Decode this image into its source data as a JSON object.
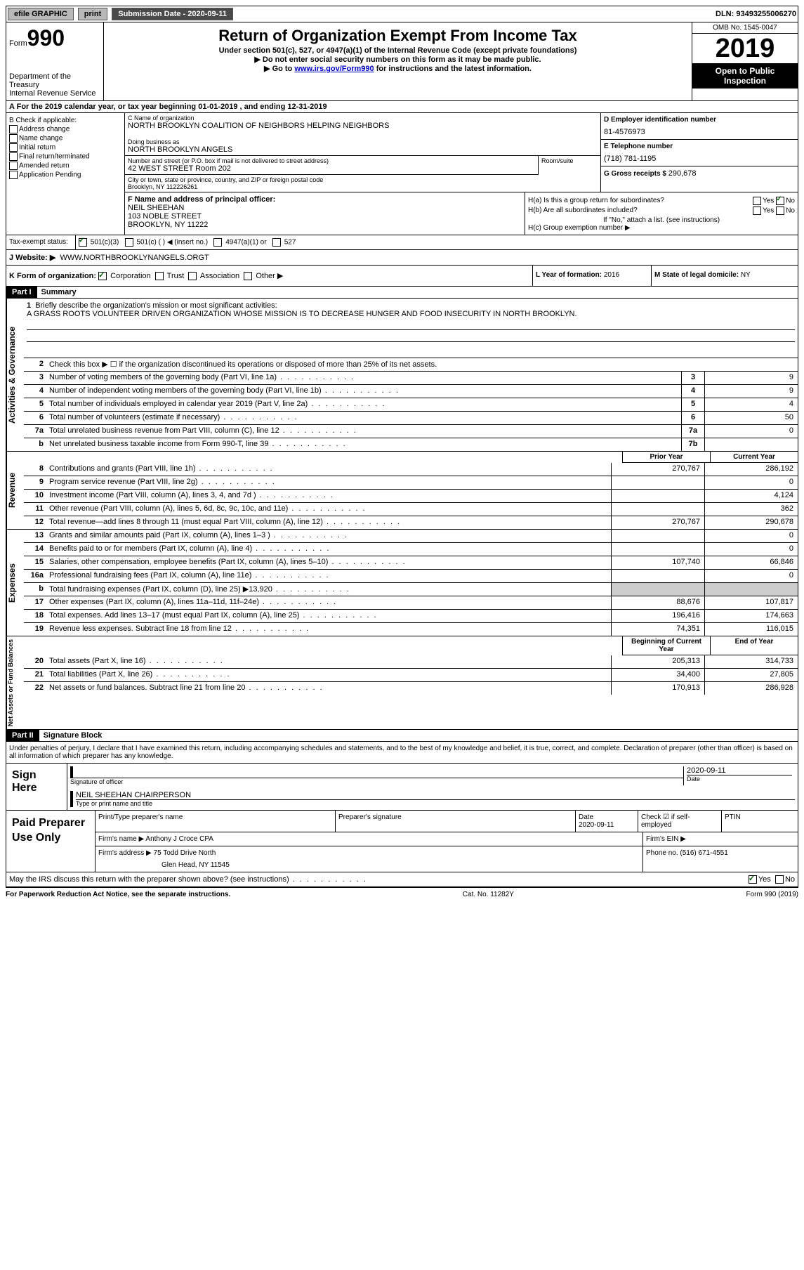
{
  "topbar": {
    "efile": "efile GRAPHIC",
    "print": "print",
    "subdate_label": "Submission Date - ",
    "subdate": "2020-09-11",
    "dln_label": "DLN: ",
    "dln": "93493255006270"
  },
  "header": {
    "form_label": "Form",
    "form_num": "990",
    "dept1": "Department of the Treasury",
    "dept2": "Internal Revenue Service",
    "title": "Return of Organization Exempt From Income Tax",
    "sub1": "Under section 501(c), 527, or 4947(a)(1) of the Internal Revenue Code (except private foundations)",
    "sub2": "▶ Do not enter social security numbers on this form as it may be made public.",
    "sub3a": "▶ Go to ",
    "sub3_link": "www.irs.gov/Form990",
    "sub3b": " for instructions and the latest information.",
    "omb": "OMB No. 1545-0047",
    "year": "2019",
    "open": "Open to Public Inspection"
  },
  "period": {
    "text1": "For the 2019 calendar year, or tax year beginning ",
    "begin": "01-01-2019",
    "text2": " , and ending ",
    "end": "12-31-2019"
  },
  "colB": {
    "label": "B Check if applicable:",
    "addr_change": "Address change",
    "name_change": "Name change",
    "initial": "Initial return",
    "final": "Final return/terminated",
    "amended": "Amended return",
    "app_pending": "Application Pending"
  },
  "colC": {
    "name_label": "C Name of organization",
    "name": "NORTH BROOKLYN COALITION OF NEIGHBORS HELPING NEIGHBORS",
    "dba_label": "Doing business as",
    "dba": "NORTH BROOKLYN ANGELS",
    "addr_label": "Number and street (or P.O. box if mail is not delivered to street address)",
    "addr": "42 WEST STREET Room 202",
    "room_label": "Room/suite",
    "city_label": "City or town, state or province, country, and ZIP or foreign postal code",
    "city": "Brooklyn, NY  112226261"
  },
  "colD": {
    "ein_label": "D Employer identification number",
    "ein": "81-4576973",
    "phone_label": "E Telephone number",
    "phone": "(718) 781-1195",
    "gross_label": "G Gross receipts $ ",
    "gross": "290,678"
  },
  "colF": {
    "label": "F  Name and address of principal officer:",
    "name": "NEIL SHEEHAN",
    "addr1": "103 NOBLE STREET",
    "addr2": "BROOKLYN, NY  11222"
  },
  "colH": {
    "ha": "H(a)  Is this a group return for subordinates?",
    "hb": "H(b)  Are all subordinates included?",
    "hb_note": "If \"No,\" attach a list. (see instructions)",
    "hc": "H(c)  Group exemption number ▶",
    "yes": "Yes",
    "no": "No"
  },
  "taxStatus": {
    "label": "Tax-exempt status:",
    "c501c3": "501(c)(3)",
    "c501c": "501(c) (   ) ◀ (insert no.)",
    "c4947": "4947(a)(1) or",
    "c527": "527"
  },
  "website": {
    "label": "J Website: ▶",
    "value": "WWW.NORTHBROOKLYNANGELS.ORGT"
  },
  "rowK": {
    "label": "K Form of organization:",
    "corp": "Corporation",
    "trust": "Trust",
    "assoc": "Association",
    "other": "Other ▶",
    "year_label": "L Year of formation: ",
    "year_val": "2016",
    "state_label": "M State of legal domicile: ",
    "state_val": "NY"
  },
  "part1": {
    "header": "Part I",
    "title": "Summary"
  },
  "activities": {
    "label": "Activities & Governance",
    "line1_desc": "Briefly describe the organization's mission or most significant activities:",
    "mission": "A GRASS ROOTS VOLUNTEER DRIVEN ORGANIZATION WHOSE MISSION IS TO DECREASE HUNGER AND FOOD INSECURITY IN NORTH BROOKLYN.",
    "line2_desc": "Check this box ▶ ☐  if the organization discontinued its operations or disposed of more than 25% of its net assets.",
    "line3_desc": "Number of voting members of the governing body (Part VI, line 1a)",
    "line3_val": "9",
    "line4_desc": "Number of independent voting members of the governing body (Part VI, line 1b)",
    "line4_val": "9",
    "line5_desc": "Total number of individuals employed in calendar year 2019 (Part V, line 2a)",
    "line5_val": "4",
    "line6_desc": "Total number of volunteers (estimate if necessary)",
    "line6_val": "50",
    "line7a_desc": "Total unrelated business revenue from Part VIII, column (C), line 12",
    "line7a_val": "0",
    "line7b_desc": "Net unrelated business taxable income from Form 990-T, line 39"
  },
  "yearHeaders": {
    "prior": "Prior Year",
    "current": "Current Year",
    "boc": "Beginning of Current Year",
    "eoy": "End of Year"
  },
  "revenue": {
    "label": "Revenue",
    "lines": [
      {
        "n": "8",
        "desc": "Contributions and grants (Part VIII, line 1h)",
        "py": "270,767",
        "cy": "286,192"
      },
      {
        "n": "9",
        "desc": "Program service revenue (Part VIII, line 2g)",
        "py": "",
        "cy": "0"
      },
      {
        "n": "10",
        "desc": "Investment income (Part VIII, column (A), lines 3, 4, and 7d )",
        "py": "",
        "cy": "4,124"
      },
      {
        "n": "11",
        "desc": "Other revenue (Part VIII, column (A), lines 5, 6d, 8c, 9c, 10c, and 11e)",
        "py": "",
        "cy": "362"
      },
      {
        "n": "12",
        "desc": "Total revenue—add lines 8 through 11 (must equal Part VIII, column (A), line 12)",
        "py": "270,767",
        "cy": "290,678"
      }
    ]
  },
  "expenses": {
    "label": "Expenses",
    "lines": [
      {
        "n": "13",
        "desc": "Grants and similar amounts paid (Part IX, column (A), lines 1–3 )",
        "py": "",
        "cy": "0"
      },
      {
        "n": "14",
        "desc": "Benefits paid to or for members (Part IX, column (A), line 4)",
        "py": "",
        "cy": "0"
      },
      {
        "n": "15",
        "desc": "Salaries, other compensation, employee benefits (Part IX, column (A), lines 5–10)",
        "py": "107,740",
        "cy": "66,846"
      },
      {
        "n": "16a",
        "desc": "Professional fundraising fees (Part IX, column (A), line 11e)",
        "py": "",
        "cy": "0"
      },
      {
        "n": "b",
        "desc": "Total fundraising expenses (Part IX, column (D), line 25) ▶13,920",
        "py": "SHADE",
        "cy": "SHADE"
      },
      {
        "n": "17",
        "desc": "Other expenses (Part IX, column (A), lines 11a–11d, 11f–24e)",
        "py": "88,676",
        "cy": "107,817"
      },
      {
        "n": "18",
        "desc": "Total expenses. Add lines 13–17 (must equal Part IX, column (A), line 25)",
        "py": "196,416",
        "cy": "174,663"
      },
      {
        "n": "19",
        "desc": "Revenue less expenses. Subtract line 18 from line 12",
        "py": "74,351",
        "cy": "116,015"
      }
    ]
  },
  "netassets": {
    "label": "Net Assets or Fund Balances",
    "lines": [
      {
        "n": "20",
        "desc": "Total assets (Part X, line 16)",
        "py": "205,313",
        "cy": "314,733"
      },
      {
        "n": "21",
        "desc": "Total liabilities (Part X, line 26)",
        "py": "34,400",
        "cy": "27,805"
      },
      {
        "n": "22",
        "desc": "Net assets or fund balances. Subtract line 21 from line 20",
        "py": "170,913",
        "cy": "286,928"
      }
    ]
  },
  "part2": {
    "header": "Part II",
    "title": "Signature Block",
    "declaration": "Under penalties of perjury, I declare that I have examined this return, including accompanying schedules and statements, and to the best of my knowledge and belief, it is true, correct, and complete. Declaration of preparer (other than officer) is based on all information of which preparer has any knowledge."
  },
  "sign": {
    "label": "Sign Here",
    "sig_label": "Signature of officer",
    "date_label": "Date",
    "date": "2020-09-11",
    "name": "NEIL SHEEHAN  CHAIRPERSON",
    "name_label": "Type or print name and title"
  },
  "preparer": {
    "label": "Paid Preparer Use Only",
    "print_label": "Print/Type preparer's name",
    "sig_label": "Preparer's signature",
    "date_label": "Date",
    "date": "2020-09-11",
    "check_label": "Check ☑ if self-employed",
    "ptin_label": "PTIN",
    "firm_name_label": "Firm's name    ▶",
    "firm_name": "Anthony J Croce CPA",
    "firm_ein_label": "Firm's EIN ▶",
    "firm_addr_label": "Firm's address ▶",
    "firm_addr1": "75 Todd Drive North",
    "firm_addr2": "Glen Head, NY  11545",
    "phone_label": "Phone no. ",
    "phone": "(516) 671-4551"
  },
  "discuss": {
    "text": "May the IRS discuss this return with the preparer shown above? (see instructions)",
    "yes": "Yes",
    "no": "No"
  },
  "footer": {
    "left": "For Paperwork Reduction Act Notice, see the separate instructions.",
    "mid": "Cat. No. 11282Y",
    "right": "Form 990 (2019)"
  }
}
